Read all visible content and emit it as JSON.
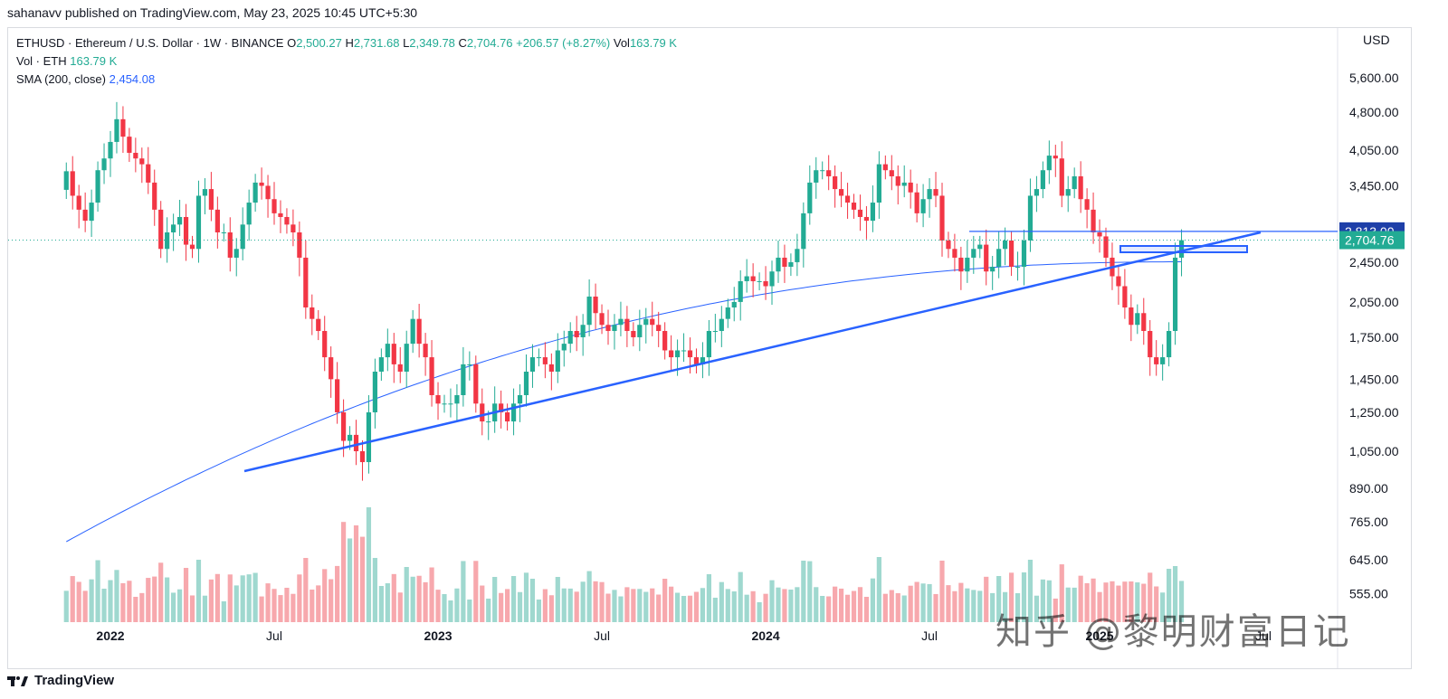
{
  "header": {
    "publish_line": "sahanavv published on TradingView.com, May 23, 2025 10:45 UTC+5:30"
  },
  "legend": {
    "symbol_desc": "ETHUSD · Ethereum / U.S. Dollar · 1W · BINANCE",
    "o_label": "O",
    "o_value": "2,500.27",
    "h_label": "H",
    "h_value": "2,731.68",
    "l_label": "L",
    "l_value": "2,349.78",
    "c_label": "C",
    "c_value": "2,704.76",
    "change": "+206.57 (+8.27%)",
    "vol_label": "Vol",
    "vol_value": "163.79 K",
    "vol_eth_label": "Vol · ETH",
    "vol_eth_value": "163.79 K",
    "sma_label": "SMA (200, close)",
    "sma_value": "2,454.08"
  },
  "footer": {
    "brand": "TradingView"
  },
  "watermark": "知乎 @黎明财富日记",
  "colors": {
    "up": "#22ab94",
    "down": "#f23645",
    "sma": "#2962ff",
    "trend": "#2962ff",
    "vol_up": "#9fd8cf",
    "vol_down": "#f7a8ad",
    "tag_blue": "#1e3fa8",
    "tag_teal": "#22ab94"
  },
  "chart_data": {
    "type": "candlestick",
    "title": "ETHUSD · Ethereum / U.S. Dollar · 1W · BINANCE",
    "currency_label": "USD",
    "y_scale": "log",
    "y_ticks": [
      "5,600.00",
      "4,800.00",
      "4,050.00",
      "3,450.00",
      "2,450.00",
      "2,050.00",
      "1,750.00",
      "1,450.00",
      "1,250.00",
      "1,050.00",
      "890.00",
      "765.00",
      "645.00",
      "555.00"
    ],
    "x_ticks": [
      "2022",
      "Jul",
      "2023",
      "Jul",
      "2024",
      "Jul",
      "2025",
      "Jul"
    ],
    "price_tags": [
      {
        "value": "2,813.00",
        "role": "horizontal-line"
      },
      {
        "value": "2,704.76",
        "role": "last-price"
      }
    ],
    "closes_weekly": [
      3683,
      3300,
      3100,
      2950,
      3200,
      3700,
      3900,
      4200,
      4650,
      4300,
      4000,
      3900,
      3800,
      3500,
      3100,
      2600,
      2800,
      2900,
      3000,
      2650,
      2600,
      3300,
      3400,
      3100,
      2800,
      2800,
      2500,
      2600,
      2900,
      3200,
      3500,
      3450,
      3250,
      3050,
      3000,
      2900,
      2800,
      2500,
      2000,
      1900,
      1800,
      1600,
      1450,
      1250,
      1100,
      1130,
      1050,
      1000,
      1250,
      1500,
      1600,
      1700,
      1550,
      1500,
      1700,
      1900,
      1700,
      1600,
      1350,
      1300,
      1300,
      1300,
      1350,
      1550,
      1550,
      1300,
      1200,
      1200,
      1300,
      1250,
      1200,
      1300,
      1350,
      1500,
      1600,
      1600,
      1550,
      1500,
      1650,
      1700,
      1800,
      1750,
      1850,
      2100,
      1950,
      1850,
      1800,
      1850,
      1900,
      1800,
      1750,
      1850,
      1900,
      1850,
      1800,
      1650,
      1600,
      1650,
      1650,
      1600,
      1550,
      1600,
      1800,
      1800,
      1900,
      2000,
      2050,
      2250,
      2300,
      2250,
      2250,
      2200,
      2350,
      2500,
      2400,
      2450,
      2600,
      3050,
      3500,
      3700,
      3700,
      3600,
      3400,
      3300,
      3200,
      3100,
      3000,
      2950,
      3200,
      3800,
      3700,
      3600,
      3450,
      3500,
      3350,
      3050,
      3250,
      3400,
      3300,
      2700,
      2600,
      2500,
      2350,
      2500,
      2600,
      2650,
      2350,
      2400,
      2600,
      2700,
      2400,
      2400,
      2700,
      3300,
      3400,
      3700,
      3950,
      3900,
      3300,
      3400,
      3600,
      3250,
      3100,
      2800,
      2750,
      2500,
      2300,
      2200,
      2000,
      1850,
      1950,
      1800,
      1600,
      1550,
      1600,
      1800,
      2500,
      2704
    ],
    "first_close_date": "2021-11-15",
    "sma_200_last": "2,454.08"
  }
}
